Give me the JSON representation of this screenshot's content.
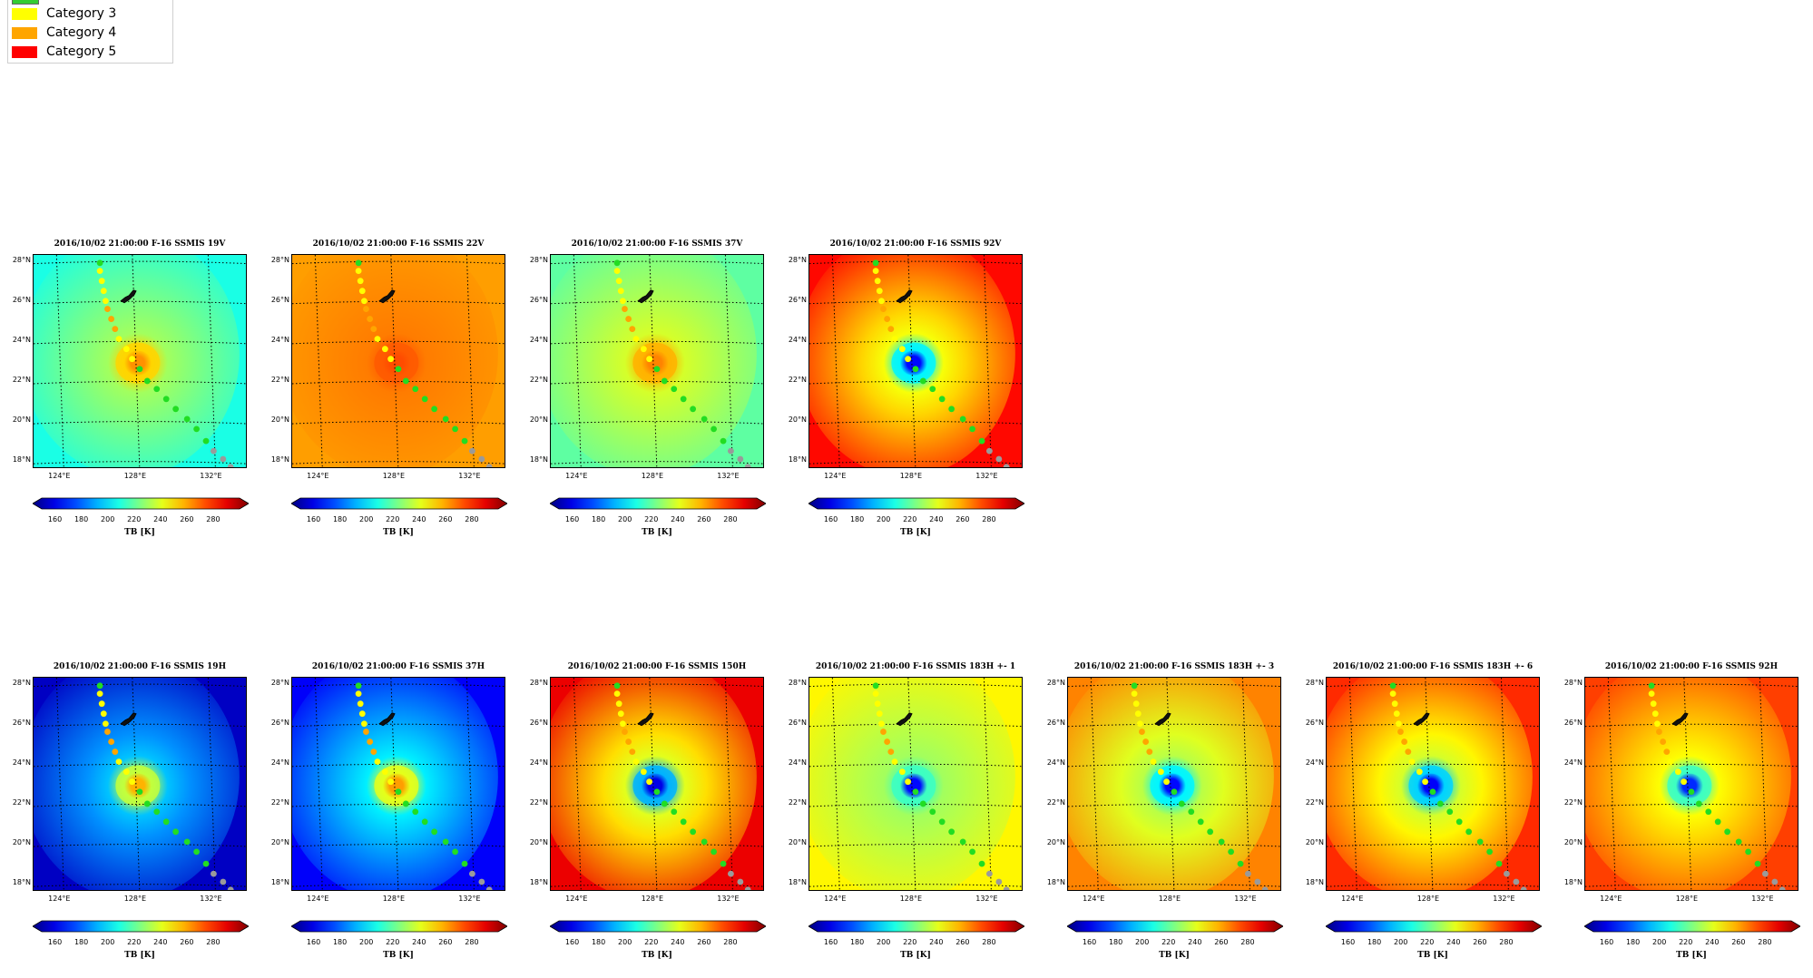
{
  "legend": {
    "items": [
      {
        "label": "Category 3",
        "color": "#ffff00"
      },
      {
        "label": "Category 4",
        "color": "#ffa500"
      },
      {
        "label": "Category 5",
        "color": "#ff0000"
      }
    ],
    "partial_top_color": "#33cc33"
  },
  "chart_data": [
    {
      "type": "heatmap",
      "title": "2016/10/02 21:00:00  F-16 SSMIS 19V",
      "channel": "19V",
      "colormap": "jet",
      "clim": [
        150,
        300
      ],
      "background_tb": 210,
      "eye_tb": 260,
      "eyewall_tb": 250,
      "colorbar_label": "TB [K]",
      "colorbar_ticks": [
        "160",
        "180",
        "200",
        "220",
        "240",
        "260",
        "280"
      ],
      "lat_ticks": [
        "28°N",
        "26°N",
        "24°N",
        "22°N",
        "20°N",
        "18°N"
      ],
      "lon_ticks": [
        "124°E",
        "128°E",
        "132°E"
      ]
    },
    {
      "type": "heatmap",
      "title": "2016/10/02 21:00:00  F-16 SSMIS 22V",
      "channel": "22V",
      "colormap": "jet",
      "clim": [
        150,
        300
      ],
      "background_tb": 258,
      "eye_tb": 270,
      "eyewall_tb": 268,
      "colorbar_label": "TB [K]",
      "colorbar_ticks": [
        "160",
        "180",
        "200",
        "220",
        "240",
        "260",
        "280"
      ],
      "lat_ticks": [
        "28°N",
        "26°N",
        "24°N",
        "22°N",
        "20°N",
        "18°N"
      ],
      "lon_ticks": [
        "124°E",
        "128°E",
        "132°E"
      ]
    },
    {
      "type": "heatmap",
      "title": "2016/10/02 21:00:00  F-16 SSMIS 37V",
      "channel": "37V",
      "colormap": "jet",
      "clim": [
        150,
        300
      ],
      "background_tb": 220,
      "eye_tb": 262,
      "eyewall_tb": 255,
      "colorbar_label": "TB [K]",
      "colorbar_ticks": [
        "160",
        "180",
        "200",
        "220",
        "240",
        "260",
        "280"
      ],
      "lat_ticks": [
        "28°N",
        "26°N",
        "24°N",
        "22°N",
        "20°N",
        "18°N"
      ],
      "lon_ticks": [
        "124°E",
        "128°E",
        "132°E"
      ]
    },
    {
      "type": "heatmap",
      "title": "2016/10/02 21:00:00  F-16 SSMIS 92V",
      "channel": "92V",
      "colormap": "jet",
      "clim": [
        150,
        300
      ],
      "background_tb": 280,
      "eye_tb": 170,
      "eyewall_tb": 205,
      "colorbar_label": "TB [K]",
      "colorbar_ticks": [
        "160",
        "180",
        "200",
        "220",
        "240",
        "260",
        "280"
      ],
      "lat_ticks": [
        "28°N",
        "26°N",
        "24°N",
        "22°N",
        "20°N",
        "18°N"
      ],
      "lon_ticks": [
        "124°E",
        "128°E",
        "132°E"
      ]
    },
    {
      "type": "heatmap",
      "title": "2016/10/02 21:00:00  F-16 SSMIS 19H",
      "channel": "19H",
      "colormap": "jet",
      "clim": [
        150,
        300
      ],
      "background_tb": 160,
      "eye_tb": 255,
      "eyewall_tb": 235,
      "colorbar_label": "TB [K]",
      "colorbar_ticks": [
        "160",
        "180",
        "200",
        "220",
        "240",
        "260",
        "280"
      ],
      "lat_ticks": [
        "28°N",
        "26°N",
        "24°N",
        "22°N",
        "20°N",
        "18°N"
      ],
      "lon_ticks": [
        "124°E",
        "128°E",
        "132°E"
      ]
    },
    {
      "type": "heatmap",
      "title": "2016/10/02 21:00:00  F-16 SSMIS 37H",
      "channel": "37H",
      "colormap": "jet",
      "clim": [
        150,
        300
      ],
      "background_tb": 168,
      "eye_tb": 258,
      "eyewall_tb": 240,
      "colorbar_label": "TB [K]",
      "colorbar_ticks": [
        "160",
        "180",
        "200",
        "220",
        "240",
        "260",
        "280"
      ],
      "lat_ticks": [
        "28°N",
        "26°N",
        "24°N",
        "22°N",
        "20°N",
        "18°N"
      ],
      "lon_ticks": [
        "124°E",
        "128°E",
        "132°E"
      ]
    },
    {
      "type": "heatmap",
      "title": "2016/10/02 21:00:00  F-16 SSMIS 150H",
      "channel": "150H",
      "colormap": "jet",
      "clim": [
        150,
        300
      ],
      "background_tb": 284,
      "eye_tb": 165,
      "eyewall_tb": 195,
      "colorbar_label": "TB [K]",
      "colorbar_ticks": [
        "160",
        "180",
        "200",
        "220",
        "240",
        "260",
        "280"
      ],
      "lat_ticks": [
        "28°N",
        "26°N",
        "24°N",
        "22°N",
        "20°N",
        "18°N"
      ],
      "lon_ticks": [
        "124°E",
        "128°E",
        "132°E"
      ]
    },
    {
      "type": "heatmap",
      "title": "2016/10/02 21:00:00  F-16 SSMIS 183H +- 1",
      "channel": "183H +- 1",
      "colormap": "jet",
      "clim": [
        150,
        300
      ],
      "background_tb": 245,
      "eye_tb": 170,
      "eyewall_tb": 215,
      "colorbar_label": "TB [K]",
      "colorbar_ticks": [
        "160",
        "180",
        "200",
        "220",
        "240",
        "260",
        "280"
      ],
      "lat_ticks": [
        "28°N",
        "26°N",
        "24°N",
        "22°N",
        "20°N",
        "18°N"
      ],
      "lon_ticks": [
        "124°E",
        "128°E",
        "132°E"
      ]
    },
    {
      "type": "heatmap",
      "title": "2016/10/02 21:00:00  F-16 SSMIS 183H +- 3",
      "channel": "183H +- 3",
      "colormap": "jet",
      "clim": [
        150,
        300
      ],
      "background_tb": 262,
      "eye_tb": 170,
      "eyewall_tb": 205,
      "colorbar_label": "TB [K]",
      "colorbar_ticks": [
        "160",
        "180",
        "200",
        "220",
        "240",
        "260",
        "280"
      ],
      "lat_ticks": [
        "28°N",
        "26°N",
        "24°N",
        "22°N",
        "20°N",
        "18°N"
      ],
      "lon_ticks": [
        "124°E",
        "128°E",
        "132°E"
      ]
    },
    {
      "type": "heatmap",
      "title": "2016/10/02 21:00:00  F-16 SSMIS 183H +- 6",
      "channel": "183H +- 6",
      "colormap": "jet",
      "clim": [
        150,
        300
      ],
      "background_tb": 275,
      "eye_tb": 168,
      "eyewall_tb": 200,
      "colorbar_label": "TB [K]",
      "colorbar_ticks": [
        "160",
        "180",
        "200",
        "220",
        "240",
        "260",
        "280"
      ],
      "lat_ticks": [
        "28°N",
        "26°N",
        "24°N",
        "22°N",
        "20°N",
        "18°N"
      ],
      "lon_ticks": [
        "124°E",
        "128°E",
        "132°E"
      ]
    },
    {
      "type": "heatmap",
      "title": "2016/10/02 21:00:00  F-16 SSMIS 92H",
      "channel": "92H",
      "colormap": "jet",
      "clim": [
        150,
        300
      ],
      "background_tb": 272,
      "eye_tb": 175,
      "eyewall_tb": 215,
      "colorbar_label": "TB [K]",
      "colorbar_ticks": [
        "160",
        "180",
        "200",
        "220",
        "240",
        "260",
        "280"
      ],
      "lat_ticks": [
        "28°N",
        "26°N",
        "24°N",
        "22°N",
        "20°N",
        "18°N"
      ],
      "lon_ticks": [
        "124°E",
        "128°E",
        "132°E"
      ]
    }
  ],
  "track": {
    "map_extent_lon": [
      122.5,
      133.8
    ],
    "map_extent_lat": [
      17.6,
      28.3
    ],
    "eye": {
      "lon": 128.0,
      "lat": 22.9
    },
    "points": [
      {
        "lon": 132.9,
        "lat": 17.7,
        "cat": "TS"
      },
      {
        "lon": 132.5,
        "lat": 18.1,
        "cat": "TS"
      },
      {
        "lon": 132.0,
        "lat": 18.5,
        "cat": "TS"
      },
      {
        "lon": 131.6,
        "lat": 19.0,
        "cat": "1"
      },
      {
        "lon": 131.1,
        "lat": 19.6,
        "cat": "1"
      },
      {
        "lon": 130.6,
        "lat": 20.1,
        "cat": "1"
      },
      {
        "lon": 130.0,
        "lat": 20.6,
        "cat": "1"
      },
      {
        "lon": 129.5,
        "lat": 21.1,
        "cat": "1"
      },
      {
        "lon": 129.0,
        "lat": 21.6,
        "cat": "1"
      },
      {
        "lon": 128.5,
        "lat": 22.0,
        "cat": "1"
      },
      {
        "lon": 128.1,
        "lat": 22.6,
        "cat": "1"
      },
      {
        "lon": 127.7,
        "lat": 23.1,
        "cat": "3"
      },
      {
        "lon": 127.4,
        "lat": 23.6,
        "cat": "3"
      },
      {
        "lon": 127.0,
        "lat": 24.1,
        "cat": "3"
      },
      {
        "lon": 126.8,
        "lat": 24.6,
        "cat": "4"
      },
      {
        "lon": 126.6,
        "lat": 25.1,
        "cat": "4"
      },
      {
        "lon": 126.4,
        "lat": 25.6,
        "cat": "4"
      },
      {
        "lon": 126.3,
        "lat": 26.0,
        "cat": "3"
      },
      {
        "lon": 126.2,
        "lat": 26.5,
        "cat": "3"
      },
      {
        "lon": 126.1,
        "lat": 27.0,
        "cat": "3"
      },
      {
        "lon": 126.0,
        "lat": 27.5,
        "cat": "3"
      },
      {
        "lon": 126.0,
        "lat": 27.9,
        "cat": "1"
      }
    ],
    "category_colors": {
      "TS": "#9a9a9a",
      "1": "#22dd22",
      "3": "#ffff00",
      "4": "#ffa500",
      "5": "#ff0000"
    }
  }
}
